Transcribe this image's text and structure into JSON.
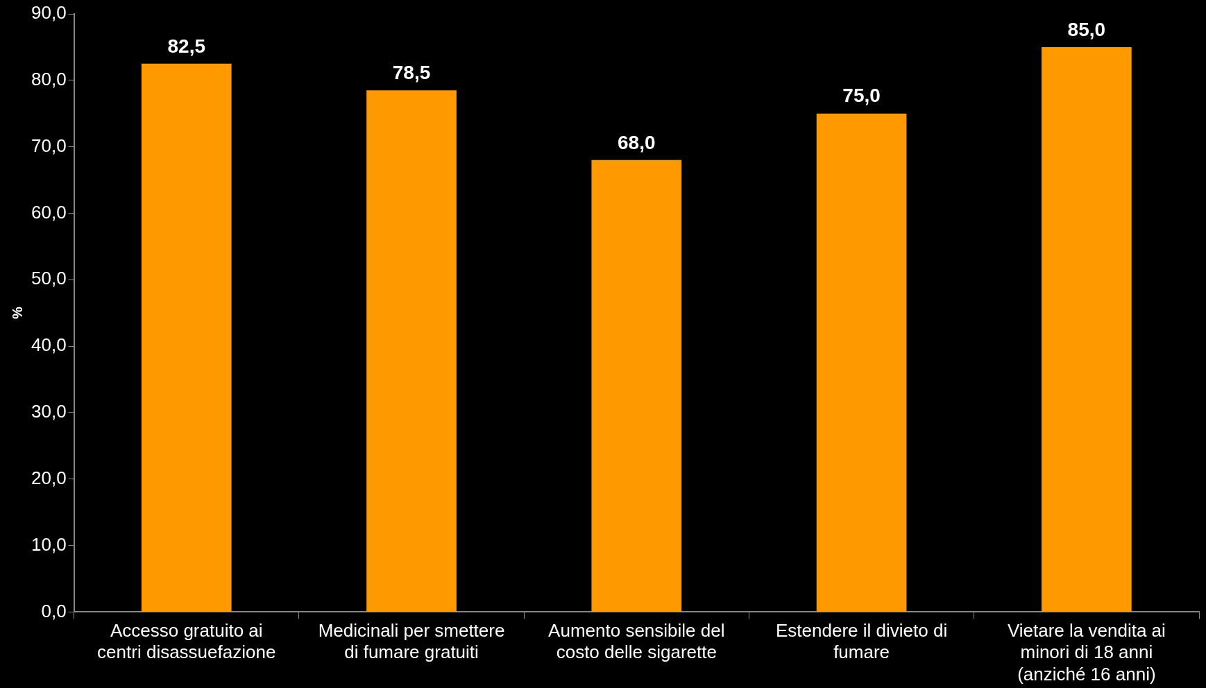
{
  "chart_data": {
    "type": "bar",
    "ylabel": "%",
    "categories": [
      "Accesso gratuito ai centri disassuefazione",
      "Medicinali per smettere di fumare gratuiti",
      "Aumento sensibile del costo delle sigarette",
      "Estendere il divieto di fumare",
      "Vietare la vendita ai minori di 18 anni (anziché 16 anni)"
    ],
    "values": [
      82.5,
      78.5,
      68.0,
      75.0,
      85.0
    ],
    "value_labels": [
      "82,5",
      "78,5",
      "68,0",
      "75,0",
      "85,0"
    ],
    "color": "#ff9900",
    "ylim": [
      0,
      90
    ],
    "yticks": [
      {
        "value": 0,
        "label": "0,0"
      },
      {
        "value": 10,
        "label": "10,0"
      },
      {
        "value": 20,
        "label": "20,0"
      },
      {
        "value": 30,
        "label": "30,0"
      },
      {
        "value": 40,
        "label": "40,0"
      },
      {
        "value": 50,
        "label": "50,0"
      },
      {
        "value": 60,
        "label": "60,0"
      },
      {
        "value": 70,
        "label": "70,0"
      },
      {
        "value": 80,
        "label": "80,0"
      },
      {
        "value": 90,
        "label": "90,0"
      }
    ],
    "grid": false,
    "legend": false
  }
}
